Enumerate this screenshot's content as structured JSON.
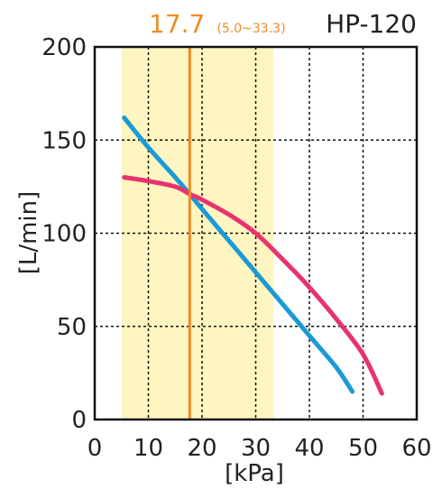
{
  "chart_data": {
    "type": "line",
    "title": "HP-120",
    "xlabel": "[kPa]",
    "ylabel": "[L/min]",
    "xlim": [
      0,
      60
    ],
    "ylim": [
      0,
      200
    ],
    "xticks": [
      0,
      10,
      20,
      30,
      40,
      50,
      60
    ],
    "yticks": [
      0,
      50,
      100,
      150,
      200
    ],
    "grid": true,
    "operating_point": {
      "value": 17.7,
      "label": "17.7",
      "range_label": "(5.0~33.3)",
      "range": [
        5.0,
        33.3
      ]
    },
    "series": [
      {
        "color": "#1a9ad6",
        "x": [
          5.5,
          10,
          15,
          17.7,
          20,
          25,
          30,
          35,
          40,
          45,
          48
        ],
        "y": [
          162,
          146,
          130,
          121,
          113,
          96,
          79,
          62,
          45,
          28,
          15
        ]
      },
      {
        "color": "#e8336e",
        "x": [
          5.5,
          10,
          15,
          17.7,
          20,
          25,
          30,
          35,
          40,
          45,
          50,
          53.5
        ],
        "y": [
          130,
          128,
          125,
          121,
          118,
          110,
          100,
          86,
          71,
          54,
          35,
          14
        ]
      }
    ]
  },
  "colors": {
    "band": "#fff5c0",
    "operating_line": "#f08a24",
    "grid": "#111111",
    "frame": "#111111"
  }
}
